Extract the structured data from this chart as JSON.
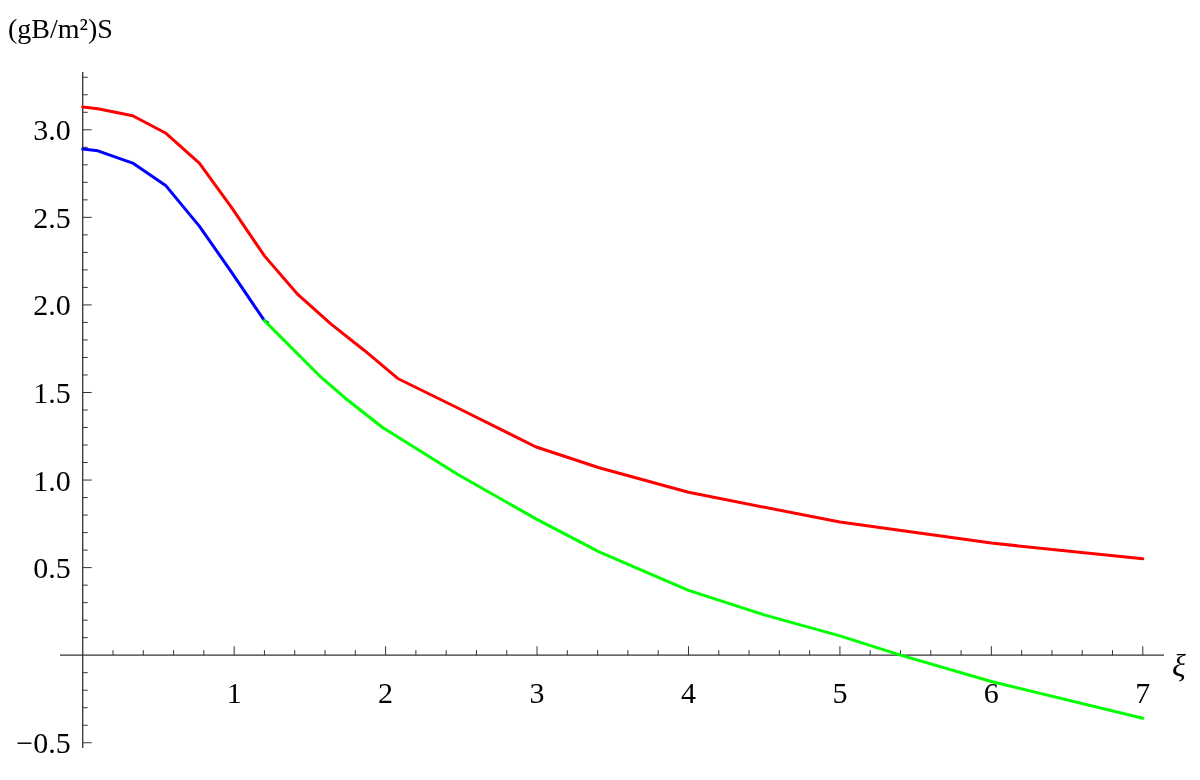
{
  "chart_data": {
    "type": "line",
    "xlabel": "ξ",
    "ylabel": "(gB/m²)S",
    "xlim": [
      -0.15,
      7.14
    ],
    "ylim": [
      -0.53,
      3.33
    ],
    "xticks": [
      {
        "value": 0.2,
        "label": null
      },
      {
        "value": 0.4,
        "label": null
      },
      {
        "value": 0.6,
        "label": null
      },
      {
        "value": 0.8,
        "label": null
      },
      1,
      {
        "value": 1.2,
        "label": null
      },
      {
        "value": 1.4,
        "label": null
      },
      {
        "value": 1.6,
        "label": null
      },
      {
        "value": 1.8,
        "label": null
      },
      2,
      {
        "value": 2.2,
        "label": null
      },
      {
        "value": 2.4,
        "label": null
      },
      {
        "value": 2.6,
        "label": null
      },
      {
        "value": 2.8,
        "label": null
      },
      3,
      {
        "value": 3.2,
        "label": null
      },
      {
        "value": 3.4,
        "label": null
      },
      {
        "value": 3.6,
        "label": null
      },
      {
        "value": 3.8,
        "label": null
      },
      4,
      {
        "value": 4.2,
        "label": null
      },
      {
        "value": 4.4,
        "label": null
      },
      {
        "value": 4.6,
        "label": null
      },
      {
        "value": 4.8,
        "label": null
      },
      5,
      {
        "value": 5.2,
        "label": null
      },
      {
        "value": 5.4,
        "label": null
      },
      {
        "value": 5.6,
        "label": null
      },
      {
        "value": 5.8,
        "label": null
      },
      6,
      {
        "value": 6.2,
        "label": null
      },
      {
        "value": 6.4,
        "label": null
      },
      {
        "value": 6.6,
        "label": null
      },
      {
        "value": 6.8,
        "label": null
      },
      7
    ],
    "yticks": [
      -0.5,
      {
        "value": -0.4,
        "label": null
      },
      {
        "value": -0.3,
        "label": null
      },
      {
        "value": -0.2,
        "label": null
      },
      {
        "value": -0.1,
        "label": null
      },
      {
        "value": 0.1,
        "label": null
      },
      {
        "value": 0.2,
        "label": null
      },
      {
        "value": 0.3,
        "label": null
      },
      {
        "value": 0.4,
        "label": null
      },
      0.5,
      {
        "value": 0.6,
        "label": null
      },
      {
        "value": 0.7,
        "label": null
      },
      {
        "value": 0.8,
        "label": null
      },
      {
        "value": 0.9,
        "label": null
      },
      {
        "value": 1,
        "label": "1.0"
      },
      {
        "value": 1.1,
        "label": null
      },
      {
        "value": 1.2,
        "label": null
      },
      {
        "value": 1.3,
        "label": null
      },
      {
        "value": 1.4,
        "label": null
      },
      1.5,
      {
        "value": 1.6,
        "label": null
      },
      {
        "value": 1.7,
        "label": null
      },
      {
        "value": 1.8,
        "label": null
      },
      {
        "value": 1.9,
        "label": null
      },
      {
        "value": 2,
        "label": "2.0"
      },
      {
        "value": 2.1,
        "label": null
      },
      {
        "value": 2.2,
        "label": null
      },
      {
        "value": 2.3,
        "label": null
      },
      {
        "value": 2.4,
        "label": null
      },
      2.5,
      {
        "value": 2.6,
        "label": null
      },
      {
        "value": 2.7,
        "label": null
      },
      {
        "value": 2.8,
        "label": null
      },
      {
        "value": 2.9,
        "label": null
      },
      {
        "value": 3,
        "label": "3.0"
      },
      {
        "value": 3.1,
        "label": null
      },
      {
        "value": 3.2,
        "label": null
      },
      {
        "value": 3.3,
        "label": null
      }
    ],
    "series": [
      {
        "color": "#ff0000",
        "x": [
          0,
          0.1,
          0.33,
          0.55,
          0.77,
          0.98,
          1.2,
          1.42,
          1.64,
          1.86,
          2.08,
          2.48,
          2.99,
          3.41,
          4,
          5,
          6,
          7
        ],
        "values": [
          3.13,
          3.12,
          3.08,
          2.98,
          2.81,
          2.56,
          2.28,
          2.06,
          1.89,
          1.74,
          1.58,
          1.41,
          1.19,
          1.07,
          0.93,
          0.76,
          0.64,
          0.55
        ]
      },
      {
        "color": "#0000ff",
        "x": [
          0,
          0.1,
          0.33,
          0.55,
          0.77,
          0.98,
          1.2,
          1.22
        ],
        "values": [
          2.89,
          2.88,
          2.81,
          2.68,
          2.45,
          2.19,
          1.91,
          1.9
        ]
      },
      {
        "color": "#00ff00",
        "x": [
          1.2,
          1.57,
          1.73,
          1.98,
          2.48,
          2.99,
          3.41,
          4,
          4.5,
          5,
          5.4,
          6,
          7
        ],
        "values": [
          1.91,
          1.59,
          1.47,
          1.3,
          1.03,
          0.78,
          0.59,
          0.37,
          0.23,
          0.11,
          0,
          -0.15,
          -0.36
        ]
      }
    ]
  }
}
